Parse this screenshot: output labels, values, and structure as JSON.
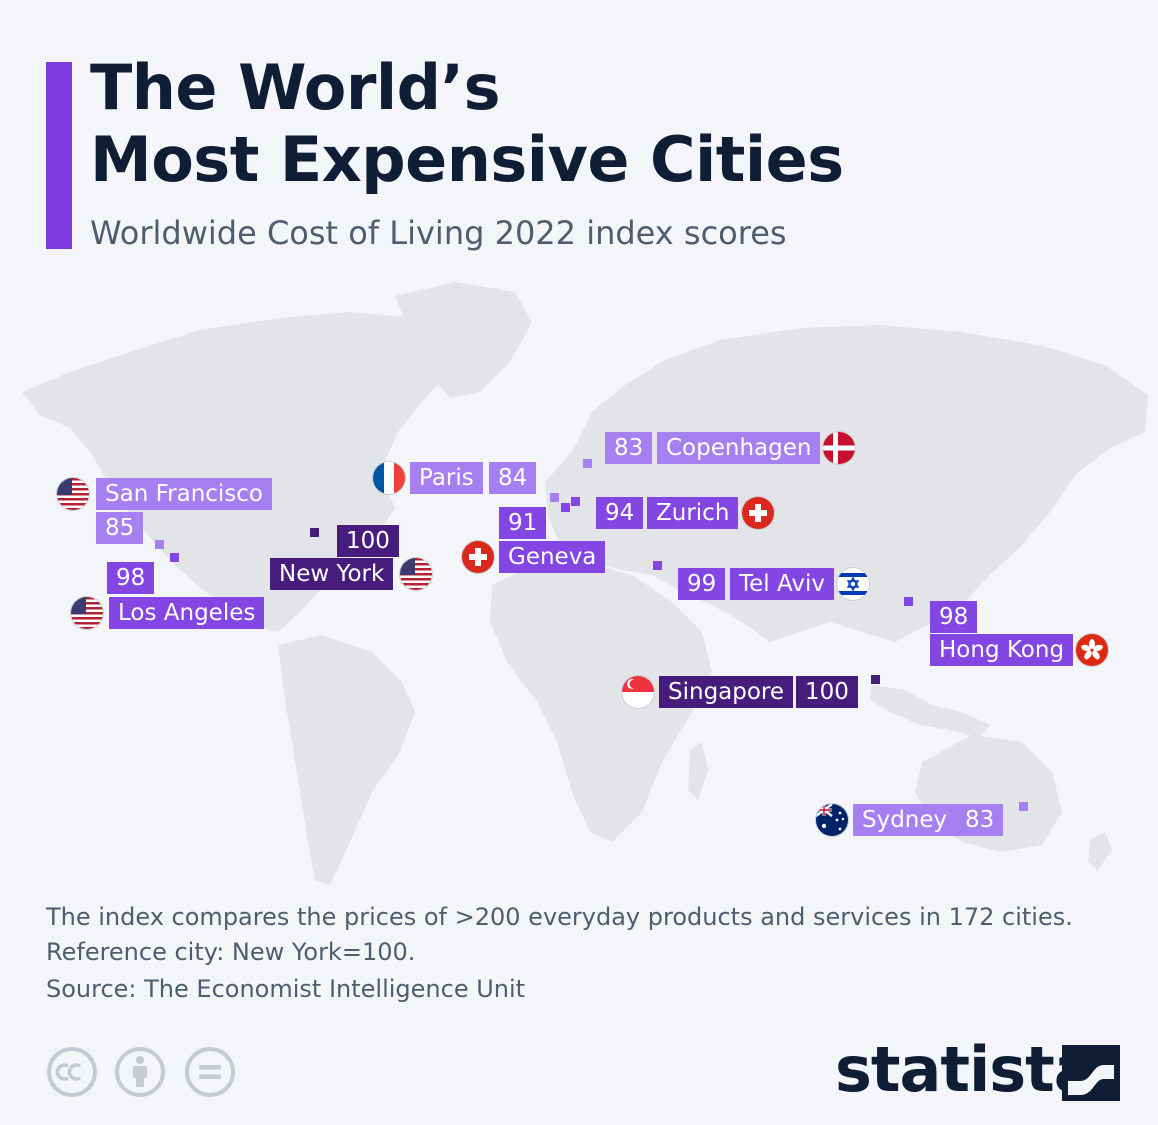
{
  "header": {
    "title_line1": "The World’s",
    "title_line2": "Most Expensive Cities",
    "subtitle": "Worldwide Cost of Living 2022 index scores"
  },
  "colors": {
    "accent": "#7d3bde",
    "tag_light": "#a67ff0",
    "tag_mid": "#8346e3",
    "tag_dark": "#461d7d",
    "land": "#e2e4e8",
    "text_dark": "#0f1d35",
    "text_muted": "#4f5d70"
  },
  "cities": {
    "san_francisco": {
      "name": "San Francisco",
      "score": "85",
      "flag": "usa-flag-icon"
    },
    "los_angeles": {
      "name": "Los Angeles",
      "score": "98",
      "flag": "usa-flag-icon"
    },
    "new_york": {
      "name": "New York",
      "score": "100",
      "flag": "usa-flag-icon"
    },
    "paris": {
      "name": "Paris",
      "score": "84",
      "flag": "france-flag-icon"
    },
    "copenhagen": {
      "name": "Copenhagen",
      "score": "83",
      "flag": "denmark-flag-icon"
    },
    "zurich": {
      "name": "Zurich",
      "score": "94",
      "flag": "switzerland-flag-icon"
    },
    "geneva": {
      "name": "Geneva",
      "score": "91",
      "flag": "switzerland-flag-icon"
    },
    "tel_aviv": {
      "name": "Tel Aviv",
      "score": "99",
      "flag": "israel-flag-icon"
    },
    "hong_kong": {
      "name": "Hong Kong",
      "score": "98",
      "flag": "hong-kong-flag-icon"
    },
    "singapore": {
      "name": "Singapore",
      "score": "100",
      "flag": "singapore-flag-icon"
    },
    "sydney": {
      "name": "Sydney",
      "score": "83",
      "flag": "australia-flag-icon"
    }
  },
  "footer": {
    "note_line1": "The index compares the prices of >200 everyday products and services in 172 cities.",
    "note_line2": "Reference city: New York=100.",
    "source": "Source: The Economist Intelligence Unit",
    "license_icons": [
      "creative-commons-icon",
      "attribution-icon",
      "no-derivatives-icon"
    ],
    "brand": "statista"
  }
}
